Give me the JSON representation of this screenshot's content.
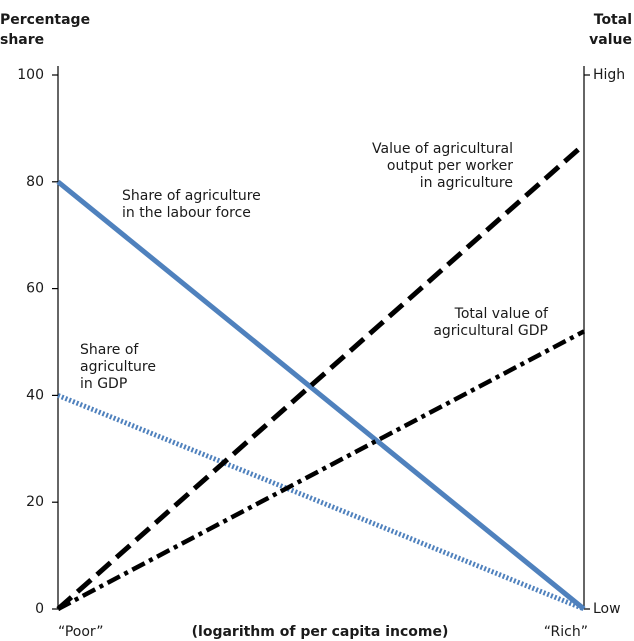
{
  "chart_data": {
    "type": "line",
    "ylabel": [
      "Percentage",
      "share"
    ],
    "y2label": [
      "Total",
      "value"
    ],
    "xlabel": "(logarithm of per capita income)",
    "xlim": [
      0,
      1
    ],
    "xticks": [
      {
        "value": 0,
        "label": "“Poor”"
      },
      {
        "value": 1,
        "label": "“Rich”"
      }
    ],
    "ylim": [
      0,
      100
    ],
    "yticks": [
      0,
      20,
      40,
      60,
      80,
      100
    ],
    "y2lim": [
      0,
      100
    ],
    "y2ticks": [
      {
        "value": 0,
        "label": "Low"
      },
      {
        "value": 100,
        "label": "High"
      }
    ],
    "series": [
      {
        "label": [
          "Share of agriculture",
          "in the labour force"
        ],
        "color": "#4f81bd",
        "style": "solid",
        "x": [
          0,
          1
        ],
        "values": [
          80,
          0
        ]
      },
      {
        "label": [
          "Share of",
          "agriculture",
          "in GDP"
        ],
        "color": "#4f81bd",
        "style": "dotted",
        "x": [
          0,
          1
        ],
        "values": [
          40,
          0
        ]
      },
      {
        "label": [
          "Value of agricultural",
          "output per worker",
          "in agriculture"
        ],
        "color": "#000000",
        "style": "dashed",
        "axis": "y2",
        "x": [
          0,
          1
        ],
        "values": [
          0,
          87
        ]
      },
      {
        "label": [
          "Total value of",
          "agricultural GDP"
        ],
        "color": "#000000",
        "style": "dashdot",
        "axis": "y2",
        "x": [
          0,
          1
        ],
        "values": [
          0,
          52
        ]
      }
    ]
  }
}
